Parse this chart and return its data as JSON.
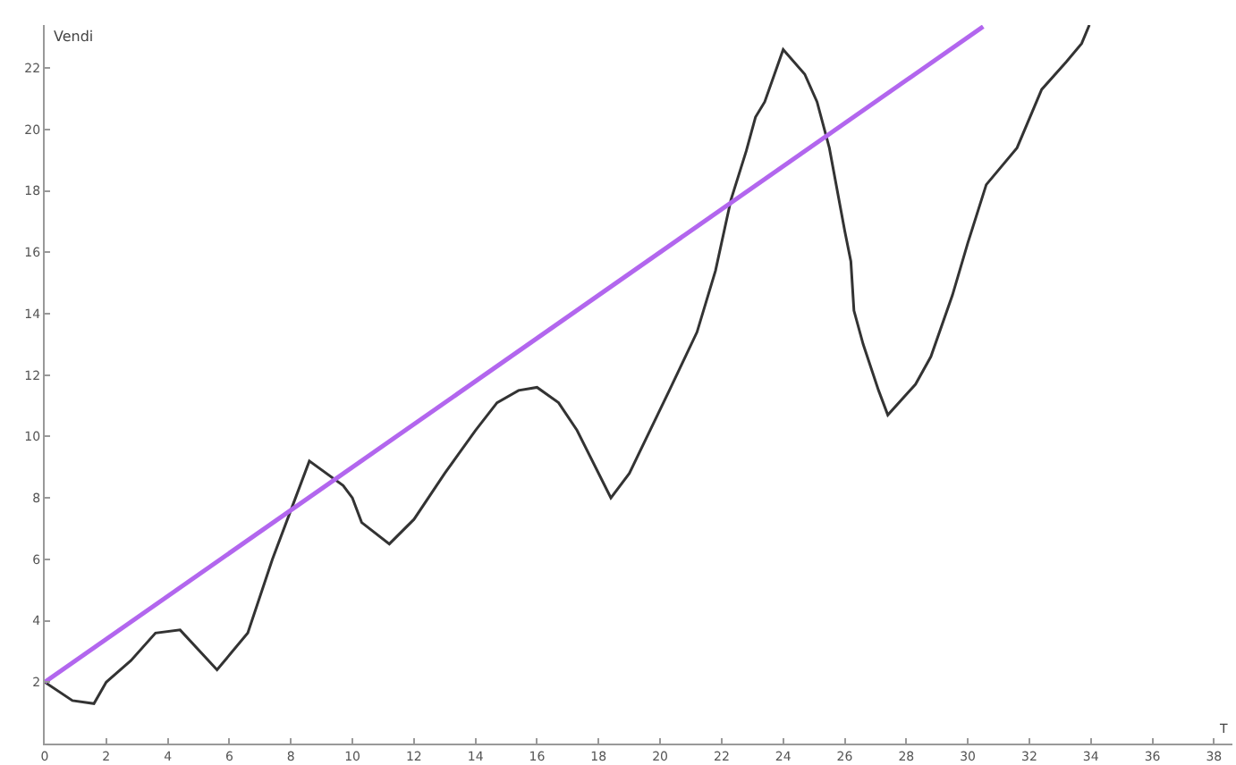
{
  "chart_data": {
    "type": "line",
    "xlabel": "T",
    "ylabel": "Vendi",
    "xlim": [
      0,
      38.6
    ],
    "ylim": [
      0,
      23.4
    ],
    "xticks": [
      0,
      2,
      4,
      6,
      8,
      10,
      12,
      14,
      16,
      18,
      20,
      22,
      24,
      26,
      28,
      30,
      32,
      34,
      36,
      38
    ],
    "yticks": [
      2,
      4,
      6,
      8,
      10,
      12,
      14,
      16,
      18,
      20,
      22
    ],
    "marker": "none",
    "line_style": "solid",
    "series": [
      {
        "color": "#333333",
        "x": [
          0,
          0.9,
          1.6,
          2.0,
          2.8,
          3.6,
          4.4,
          5.6,
          6.6,
          7.4,
          8.0,
          8.6,
          9.7,
          10.0,
          10.3,
          11.2,
          12.0,
          13.0,
          14.0,
          14.7,
          15.4,
          16.0,
          16.7,
          17.3,
          18.1,
          18.4,
          19.0,
          20.3,
          21.2,
          21.8,
          22.3,
          22.8,
          23.1,
          23.4,
          24.0,
          24.7,
          25.1,
          25.5,
          26.0,
          26.2,
          26.3,
          26.6,
          27.1,
          27.4,
          28.3,
          28.8,
          29.5,
          30.0,
          30.6,
          31.6,
          32.4,
          33.2,
          33.7,
          33.95
        ],
        "values": [
          2.0,
          1.4,
          1.3,
          2.0,
          2.7,
          3.6,
          3.7,
          2.4,
          3.6,
          6.0,
          7.6,
          9.2,
          8.4,
          8.0,
          7.2,
          6.5,
          7.3,
          8.8,
          10.2,
          11.1,
          11.5,
          11.6,
          11.1,
          10.2,
          8.6,
          8.0,
          8.8,
          11.5,
          13.4,
          15.4,
          17.7,
          19.3,
          20.4,
          20.9,
          22.6,
          21.8,
          20.9,
          19.4,
          16.7,
          15.7,
          14.1,
          13.0,
          11.5,
          10.7,
          11.7,
          12.6,
          14.6,
          16.3,
          18.2,
          19.4,
          21.3,
          22.2,
          22.8,
          23.4
        ]
      },
      {
        "color": "#b266ee",
        "x": [
          0,
          30.5
        ],
        "values": [
          2,
          23.35
        ]
      }
    ]
  }
}
